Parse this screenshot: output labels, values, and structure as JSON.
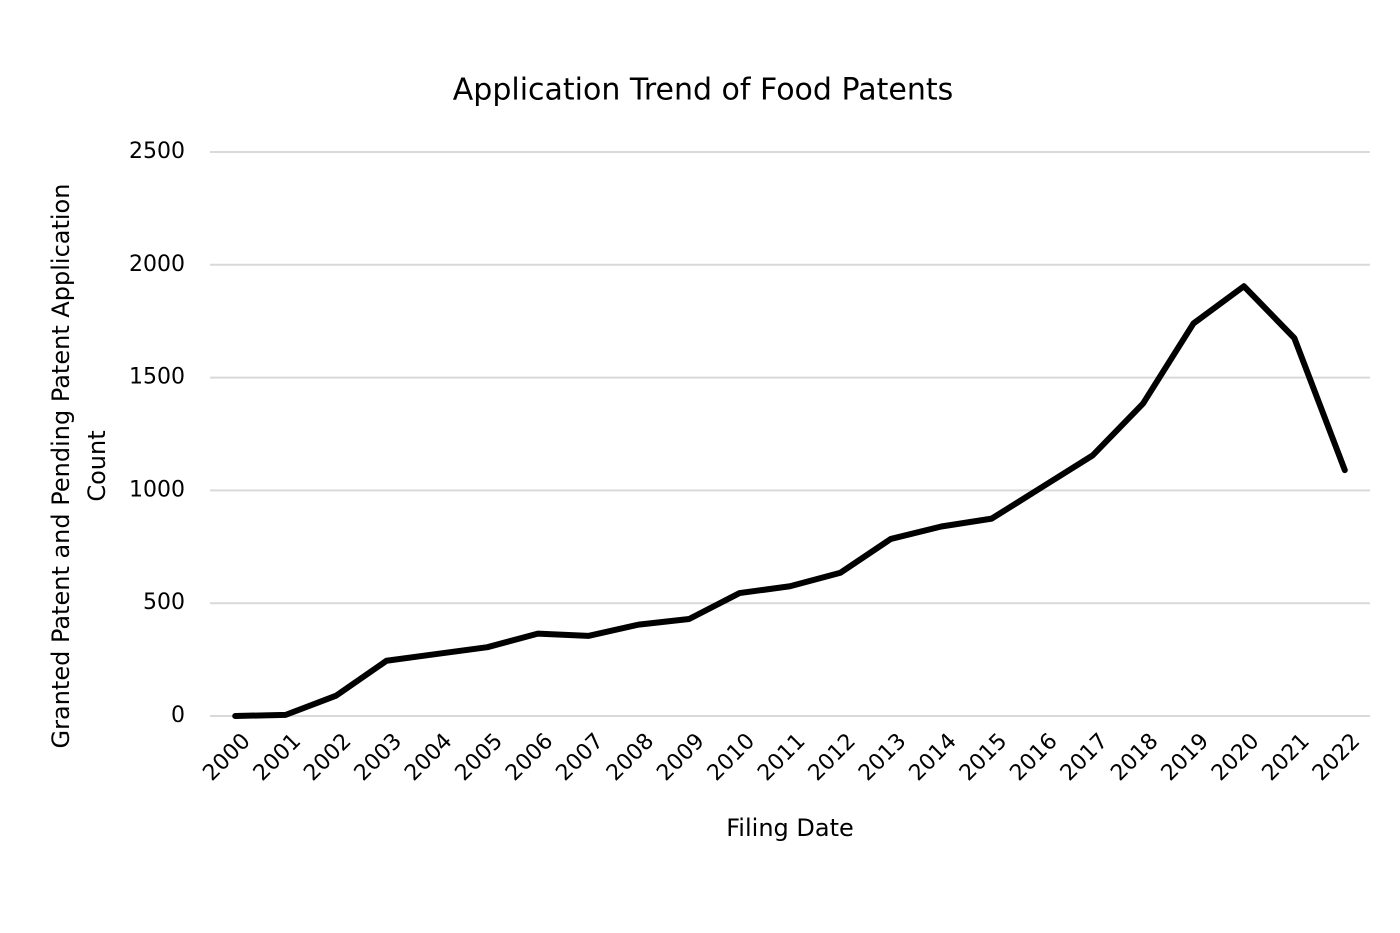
{
  "chart_data": {
    "type": "line",
    "title": "Application Trend of Food Patents",
    "x_label": "Filing Date",
    "y_label": [
      "Granted Patent and Pending Patent Application",
      "Count"
    ],
    "categories": [
      "2000",
      "2001",
      "2002",
      "2003",
      "2004",
      "2005",
      "2006",
      "2007",
      "2008",
      "2009",
      "2010",
      "2011",
      "2012",
      "2013",
      "2014",
      "2015",
      "2016",
      "2017",
      "2018",
      "2019",
      "2020",
      "2021",
      "2022"
    ],
    "values": [
      0,
      5,
      90,
      245,
      275,
      305,
      365,
      355,
      405,
      430,
      545,
      575,
      635,
      785,
      840,
      875,
      1015,
      1155,
      1385,
      1740,
      1905,
      1675,
      1090
    ],
    "color": "#000000",
    "ylim": [
      0,
      2500
    ],
    "yticks": [
      0,
      500,
      1000,
      1500,
      2000,
      2500
    ],
    "grid": true
  }
}
